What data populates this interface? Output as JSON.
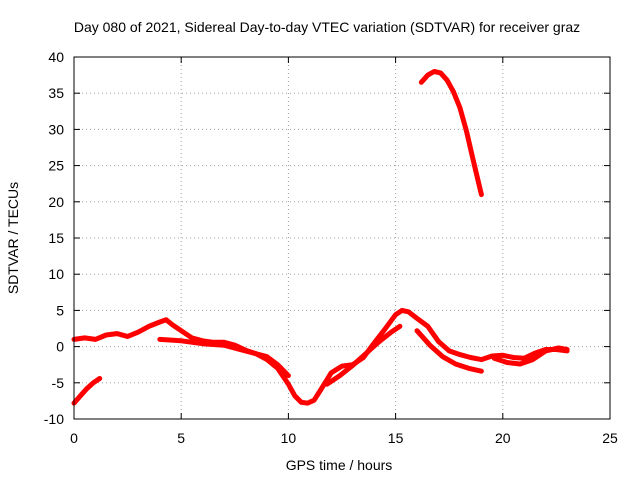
{
  "chart_data": {
    "type": "line",
    "title": "Day 080 of 2021, Sidereal Day-to-day VTEC variation (SDTVAR) for receiver graz",
    "xlabel": "GPS time / hours",
    "ylabel": "SDTVAR / TECUs",
    "xlim": [
      0,
      25
    ],
    "ylim": [
      -10,
      40
    ],
    "xticks": [
      0,
      5,
      10,
      15,
      20,
      25
    ],
    "yticks": [
      -10,
      -5,
      0,
      5,
      10,
      15,
      20,
      25,
      30,
      35,
      40
    ],
    "grid": true,
    "series_color": "#ff0000",
    "series": [
      {
        "name": "segment-1",
        "x": [
          0.0,
          0.3,
          0.6,
          0.9,
          1.2
        ],
        "y": [
          -7.8,
          -6.8,
          -5.8,
          -5.0,
          -4.4
        ]
      },
      {
        "name": "segment-2",
        "x": [
          0.0,
          0.5,
          1.0,
          1.5,
          2.0,
          2.5,
          3.0,
          3.5,
          4.0,
          4.3,
          4.6,
          5.0,
          5.5,
          6.0,
          6.5,
          7.0,
          7.5,
          8.0,
          8.5,
          9.0,
          9.5,
          10.0,
          10.3,
          10.6,
          10.9,
          11.2,
          11.5,
          12.0,
          12.5,
          13.0,
          13.5,
          14.0,
          14.5,
          15.0,
          15.3,
          15.6,
          16.0,
          16.5,
          17.0,
          17.5,
          18.0,
          18.5,
          19.0,
          19.5,
          20.0,
          20.5,
          21.0,
          21.5,
          22.0,
          22.5,
          23.0
        ],
        "y": [
          1.0,
          1.2,
          1.0,
          1.6,
          1.8,
          1.4,
          2.0,
          2.8,
          3.4,
          3.7,
          3.0,
          2.2,
          1.2,
          0.8,
          0.6,
          0.6,
          0.2,
          -0.5,
          -1.0,
          -1.8,
          -3.0,
          -5.2,
          -6.8,
          -7.7,
          -7.8,
          -7.4,
          -6.0,
          -3.6,
          -2.7,
          -2.5,
          -1.5,
          0.5,
          2.4,
          4.4,
          5.0,
          4.8,
          3.9,
          2.8,
          0.7,
          -0.6,
          -1.1,
          -1.5,
          -1.8,
          -1.3,
          -1.2,
          -1.5,
          -1.6,
          -0.9,
          -0.4,
          -0.4,
          -0.6
        ]
      },
      {
        "name": "segment-3",
        "x": [
          4.0,
          5.0,
          6.0,
          7.0,
          8.0,
          9.0,
          9.5,
          10.0
        ],
        "y": [
          1.0,
          0.8,
          0.4,
          0.2,
          -0.6,
          -1.4,
          -2.5,
          -4.0
        ]
      },
      {
        "name": "segment-4",
        "x": [
          11.8,
          12.4,
          13.0,
          13.6,
          14.2,
          14.8,
          15.2
        ],
        "y": [
          -5.2,
          -4.0,
          -2.6,
          -1.0,
          0.6,
          2.0,
          2.8
        ]
      },
      {
        "name": "segment-5",
        "x": [
          16.0,
          16.6,
          17.2,
          17.8,
          18.4,
          19.0
        ],
        "y": [
          2.2,
          0.2,
          -1.4,
          -2.4,
          -3.0,
          -3.4
        ]
      },
      {
        "name": "segment-6",
        "x": [
          19.6,
          20.2,
          20.8,
          21.4,
          22.0,
          22.6,
          23.0
        ],
        "y": [
          -1.6,
          -2.2,
          -2.4,
          -1.8,
          -0.6,
          -0.2,
          -0.4
        ]
      },
      {
        "name": "segment-7",
        "x": [
          16.2,
          16.5,
          16.8,
          17.1,
          17.4,
          17.7,
          18.0,
          18.3,
          18.6,
          18.8,
          19.0
        ],
        "y": [
          36.5,
          37.5,
          38.0,
          37.8,
          36.8,
          35.2,
          33.0,
          29.8,
          26.0,
          23.5,
          21.0
        ]
      }
    ]
  }
}
